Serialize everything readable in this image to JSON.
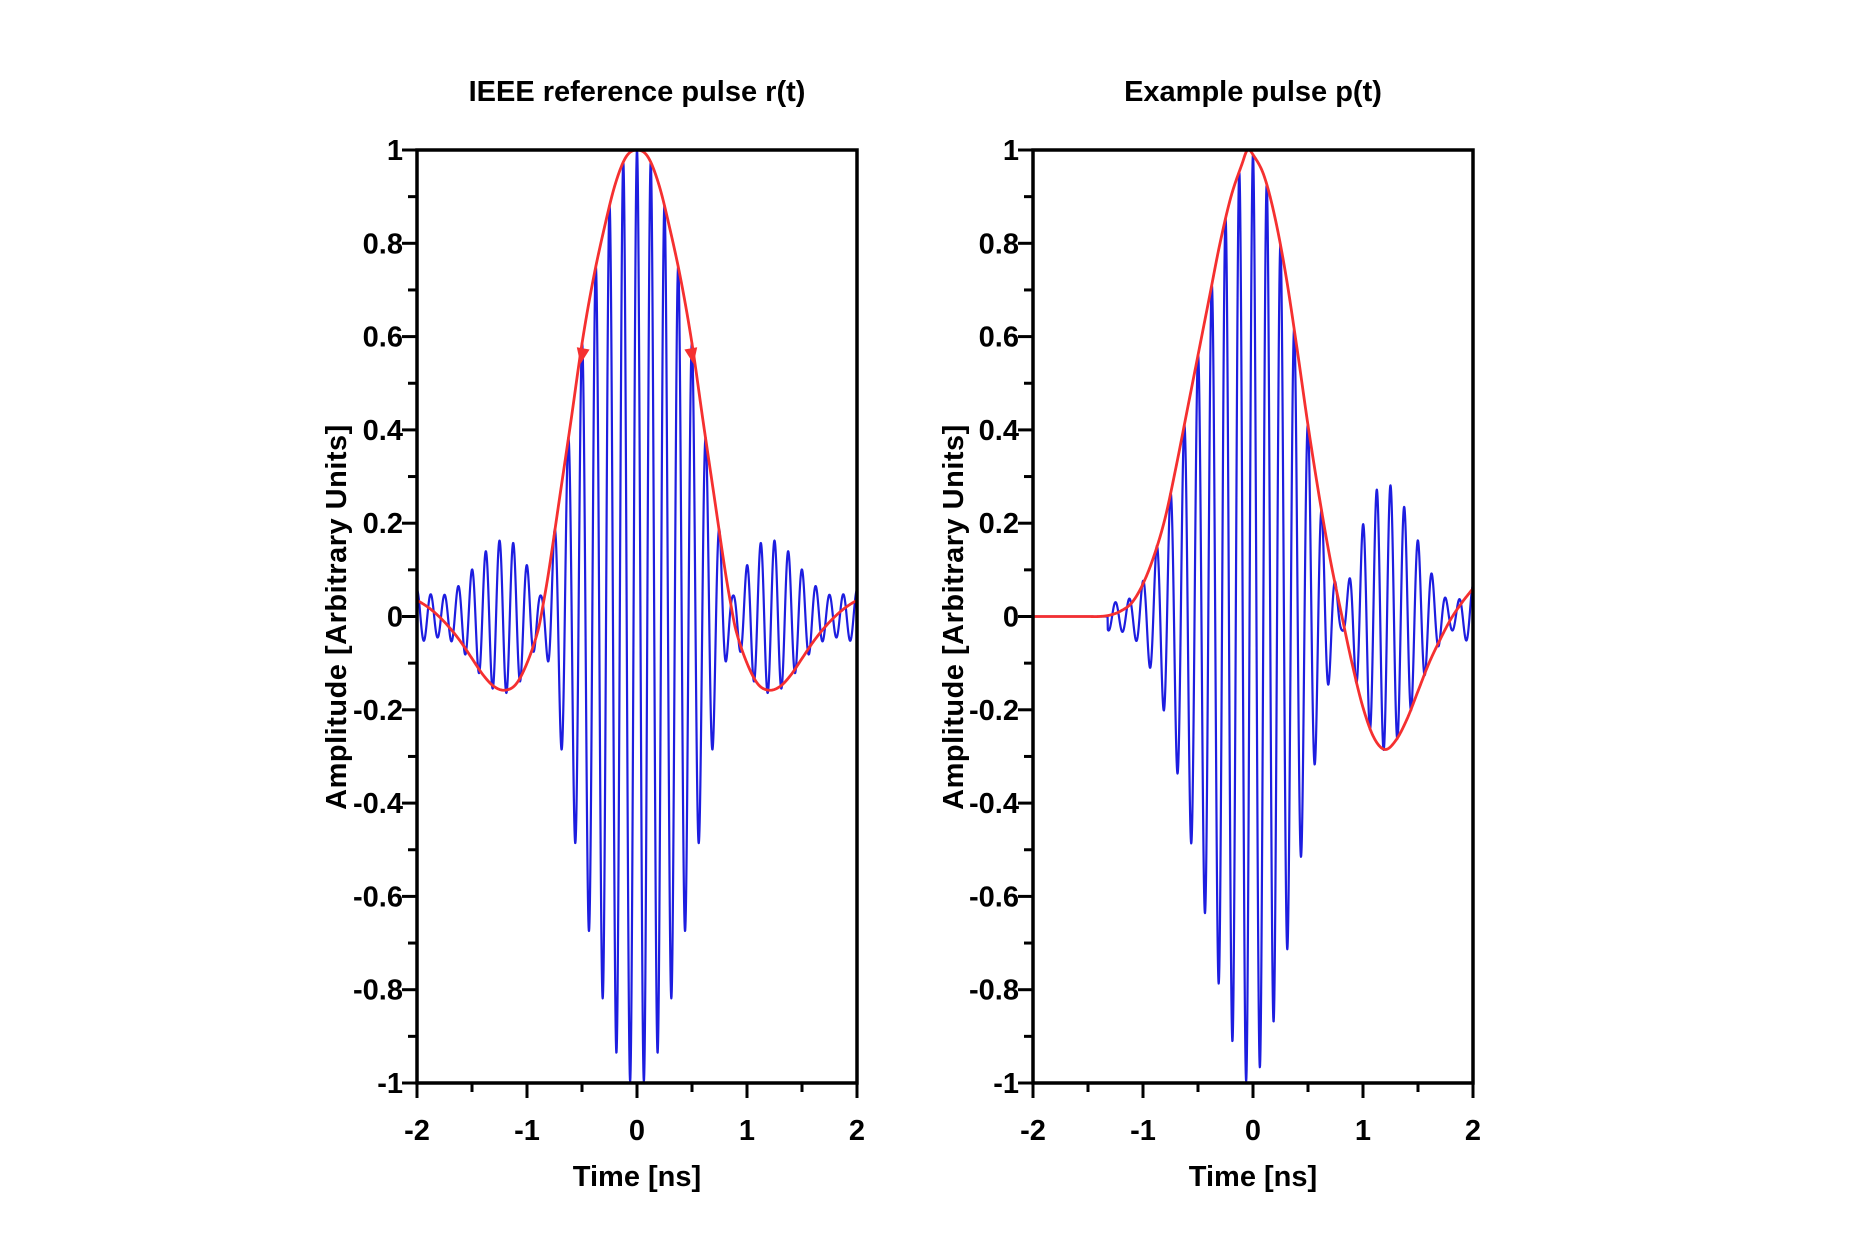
{
  "figure": {
    "background_color": "#ffffff",
    "frame_color": "#000000",
    "text_color": "#000000"
  },
  "chart_data": [
    {
      "type": "line",
      "title": "IEEE reference pulse r(t)",
      "xlabel": "Time [ns]",
      "ylabel": "Amplitude [Arbitrary Units]",
      "xlim": [
        -2,
        2
      ],
      "ylim": [
        -1,
        1
      ],
      "grid": false,
      "legend": "none",
      "x_ticks": {
        "major": [
          {
            "v": -2,
            "label": "-2"
          },
          {
            "v": -1,
            "label": "-1"
          },
          {
            "v": 0,
            "label": "0"
          },
          {
            "v": 1,
            "label": "1"
          },
          {
            "v": 2,
            "label": "2"
          }
        ],
        "minor_step": 0.5
      },
      "y_ticks": {
        "major": [
          {
            "v": 1,
            "label": "1"
          },
          {
            "v": 0.8,
            "label": "0.8"
          },
          {
            "v": 0.6,
            "label": "0.6"
          },
          {
            "v": 0.4,
            "label": "0.4"
          },
          {
            "v": 0.2,
            "label": "0.2"
          },
          {
            "v": 0,
            "label": "0"
          },
          {
            "v": -0.2,
            "label": "-0.2"
          },
          {
            "v": -0.4,
            "label": "-0.4"
          },
          {
            "v": -0.6,
            "label": "-0.6"
          },
          {
            "v": -0.8,
            "label": "-0.8"
          },
          {
            "v": -1,
            "label": "-1"
          }
        ],
        "minor_step": 0.1
      },
      "series": [
        {
          "name": "baseband-envelope-r(t)",
          "role": "envelope",
          "color": "#f53030",
          "stroke_width": 2.8,
          "points": [
            [
              -2,
              0.035
            ],
            [
              -1.9,
              0.02
            ],
            [
              -1.8,
              0.0
            ],
            [
              -1.7,
              -0.025
            ],
            [
              -1.6,
              -0.055
            ],
            [
              -1.5,
              -0.09
            ],
            [
              -1.4,
              -0.125
            ],
            [
              -1.3,
              -0.15
            ],
            [
              -1.2,
              -0.158
            ],
            [
              -1.1,
              -0.145
            ],
            [
              -1.0,
              -0.1
            ],
            [
              -0.9,
              -0.03
            ],
            [
              -0.85,
              0.03
            ],
            [
              -0.8,
              0.1
            ],
            [
              -0.7,
              0.26
            ],
            [
              -0.6,
              0.42
            ],
            [
              -0.5,
              0.585
            ],
            [
              -0.4,
              0.72
            ],
            [
              -0.3,
              0.83
            ],
            [
              -0.2,
              0.925
            ],
            [
              -0.1,
              0.985
            ],
            [
              0,
              1.0
            ],
            [
              0.1,
              0.985
            ],
            [
              0.2,
              0.925
            ],
            [
              0.3,
              0.83
            ],
            [
              0.4,
              0.72
            ],
            [
              0.5,
              0.585
            ],
            [
              0.6,
              0.42
            ],
            [
              0.7,
              0.26
            ],
            [
              0.8,
              0.1
            ],
            [
              0.85,
              0.03
            ],
            [
              0.9,
              -0.03
            ],
            [
              1.0,
              -0.1
            ],
            [
              1.1,
              -0.145
            ],
            [
              1.2,
              -0.158
            ],
            [
              1.3,
              -0.15
            ],
            [
              1.4,
              -0.125
            ],
            [
              1.5,
              -0.09
            ],
            [
              1.6,
              -0.055
            ],
            [
              1.7,
              -0.025
            ],
            [
              1.8,
              0.0
            ],
            [
              1.9,
              0.02
            ],
            [
              2,
              0.035
            ]
          ]
        },
        {
          "name": "modulated-pulse",
          "role": "carrier",
          "color": "#1d1de0",
          "stroke_width": 2.2,
          "carrier_ghz": 8,
          "phase_t0": 0,
          "residual_ripple": 0.045,
          "flat_until": null
        }
      ],
      "annotations": {
        "arrows": [
          {
            "t": -0.5,
            "a": 0.56,
            "angle_deg": 100
          },
          {
            "t": 0.5,
            "a": 0.56,
            "angle_deg": 80
          }
        ]
      }
    },
    {
      "type": "line",
      "title": "Example pulse p(t)",
      "xlabel": "Time [ns]",
      "ylabel": "Amplitude [Arbitrary Units]",
      "xlim": [
        -2,
        2
      ],
      "ylim": [
        -1,
        1
      ],
      "grid": false,
      "legend": "none",
      "x_ticks": {
        "major": [
          {
            "v": -2,
            "label": "-2"
          },
          {
            "v": -1,
            "label": "-1"
          },
          {
            "v": 0,
            "label": "0"
          },
          {
            "v": 1,
            "label": "1"
          },
          {
            "v": 2,
            "label": "2"
          }
        ],
        "minor_step": 0.5
      },
      "y_ticks": {
        "major": [
          {
            "v": 1,
            "label": "1"
          },
          {
            "v": 0.8,
            "label": "0.8"
          },
          {
            "v": 0.6,
            "label": "0.6"
          },
          {
            "v": 0.4,
            "label": "0.4"
          },
          {
            "v": 0.2,
            "label": "0.2"
          },
          {
            "v": 0,
            "label": "0"
          },
          {
            "v": -0.2,
            "label": "-0.2"
          },
          {
            "v": -0.4,
            "label": "-0.4"
          },
          {
            "v": -0.6,
            "label": "-0.6"
          },
          {
            "v": -0.8,
            "label": "-0.8"
          },
          {
            "v": -1,
            "label": "-1"
          }
        ],
        "minor_step": 0.1
      },
      "series": [
        {
          "name": "baseband-envelope-p(t)",
          "role": "envelope",
          "color": "#f53030",
          "stroke_width": 2.8,
          "points": [
            [
              -2,
              0
            ],
            [
              -1.8,
              0
            ],
            [
              -1.6,
              0
            ],
            [
              -1.5,
              0
            ],
            [
              -1.4,
              0
            ],
            [
              -1.3,
              0.003
            ],
            [
              -1.2,
              0.012
            ],
            [
              -1.1,
              0.03
            ],
            [
              -1.0,
              0.07
            ],
            [
              -0.9,
              0.13
            ],
            [
              -0.8,
              0.21
            ],
            [
              -0.7,
              0.32
            ],
            [
              -0.6,
              0.44
            ],
            [
              -0.5,
              0.56
            ],
            [
              -0.4,
              0.68
            ],
            [
              -0.3,
              0.8
            ],
            [
              -0.2,
              0.9
            ],
            [
              -0.1,
              0.97
            ],
            [
              -0.05,
              1.0
            ],
            [
              0,
              0.99
            ],
            [
              0.1,
              0.945
            ],
            [
              0.2,
              0.855
            ],
            [
              0.3,
              0.73
            ],
            [
              0.4,
              0.575
            ],
            [
              0.5,
              0.41
            ],
            [
              0.6,
              0.26
            ],
            [
              0.7,
              0.125
            ],
            [
              0.8,
              0.01
            ],
            [
              0.9,
              -0.1
            ],
            [
              1.0,
              -0.195
            ],
            [
              1.1,
              -0.26
            ],
            [
              1.2,
              -0.285
            ],
            [
              1.3,
              -0.265
            ],
            [
              1.4,
              -0.22
            ],
            [
              1.5,
              -0.16
            ],
            [
              1.6,
              -0.1
            ],
            [
              1.7,
              -0.05
            ],
            [
              1.8,
              -0.005
            ],
            [
              1.9,
              0.03
            ],
            [
              2,
              0.06
            ]
          ]
        },
        {
          "name": "modulated-pulse",
          "role": "carrier",
          "color": "#1d1de0",
          "stroke_width": 2.2,
          "carrier_ghz": 8,
          "phase_t0": 0,
          "residual_ripple": 0.03,
          "flat_until": -1.32
        }
      ],
      "annotations": {
        "arrows": []
      }
    }
  ]
}
